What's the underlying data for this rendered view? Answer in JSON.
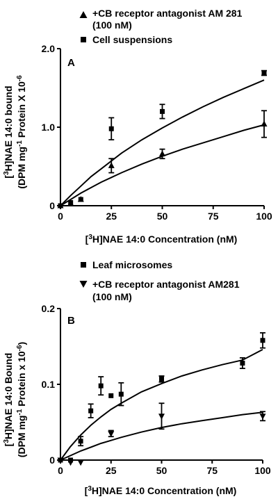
{
  "chart_data": [
    {
      "type": "scatter",
      "panel_label": "A",
      "xlabel": "[3H]NAE 14:0 Concentration (nM)",
      "ylabel_line1": "[3H]NAE 14:0 bound",
      "ylabel_line2": "(DPM mg-1 Protein X 10-6",
      "xlim": [
        0,
        100
      ],
      "ylim": [
        0,
        2.0
      ],
      "xticks": [
        0,
        25,
        50,
        75,
        100
      ],
      "yticks": [
        {
          "value": 0,
          "label": "0"
        },
        {
          "value": 1.0,
          "label": "1.0"
        },
        {
          "value": 2.0,
          "label": "2.0"
        }
      ],
      "legend_position": "top-left",
      "series": [
        {
          "name": "+CB receptor antagonist AM 281",
          "name_line2": "(100 nM)",
          "marker": "triangle-up",
          "x": [
            0,
            5,
            10,
            25,
            50,
            100
          ],
          "y": [
            0.0,
            0.03,
            0.08,
            0.51,
            0.66,
            1.04
          ],
          "err": [
            0,
            0,
            0,
            0.09,
            0.06,
            0.17
          ],
          "fit_x": [
            0,
            5,
            10,
            15,
            20,
            25,
            30,
            40,
            50,
            60,
            70,
            80,
            90,
            100
          ],
          "fit_y": [
            0.0,
            0.08,
            0.16,
            0.23,
            0.3,
            0.36,
            0.42,
            0.53,
            0.63,
            0.72,
            0.8,
            0.88,
            0.96,
            1.03
          ]
        },
        {
          "name": "Cell suspensions",
          "marker": "square",
          "x": [
            0,
            5,
            10,
            25,
            50,
            100
          ],
          "y": [
            0.0,
            0.04,
            0.08,
            0.98,
            1.2,
            1.69
          ],
          "err": [
            0,
            0,
            0,
            0.14,
            0.09,
            0.03
          ],
          "fit_x": [
            0,
            5,
            10,
            15,
            20,
            25,
            30,
            40,
            50,
            60,
            70,
            80,
            90,
            100
          ],
          "fit_y": [
            0.0,
            0.13,
            0.25,
            0.37,
            0.47,
            0.57,
            0.67,
            0.84,
            0.99,
            1.13,
            1.26,
            1.38,
            1.49,
            1.6
          ]
        }
      ]
    },
    {
      "type": "scatter",
      "panel_label": "B",
      "xlabel": "[3H]NAE 14:0 Concentration (nM)",
      "ylabel_line1": "[3H]NAE 14:0 Bound",
      "ylabel_line2": "(DPM mg-1 Protein x 10-6)",
      "xlim": [
        0,
        100
      ],
      "ylim": [
        0,
        0.2
      ],
      "xticks": [
        0,
        25,
        50,
        75,
        100
      ],
      "yticks": [
        {
          "value": 0,
          "label": "0"
        },
        {
          "value": 0.1,
          "label": "0.1"
        },
        {
          "value": 0.2,
          "label": "0.2"
        }
      ],
      "legend_position": "top-left",
      "series": [
        {
          "name": "Leaf microsomes",
          "marker": "square",
          "x": [
            0,
            5,
            10,
            15,
            20,
            25,
            30,
            50,
            90,
            100
          ],
          "y": [
            0.0,
            0.0,
            0.025,
            0.065,
            0.098,
            0.085,
            0.087,
            0.107,
            0.128,
            0.158
          ],
          "err": [
            0,
            0,
            0.006,
            0.009,
            0.012,
            0,
            0.015,
            0.004,
            0.007,
            0.01
          ],
          "fit_x": [
            0,
            5,
            10,
            15,
            20,
            25,
            30,
            40,
            50,
            60,
            70,
            80,
            90,
            100
          ],
          "fit_y": [
            0.0,
            0.018,
            0.033,
            0.046,
            0.057,
            0.067,
            0.075,
            0.09,
            0.101,
            0.111,
            0.119,
            0.126,
            0.132,
            0.146
          ]
        },
        {
          "name": "+CB receptor antagonist AM281",
          "name_line2": "(100 nM)",
          "marker": "triangle-down",
          "x": [
            0,
            5,
            10,
            25,
            50,
            100
          ],
          "y": [
            0.0,
            -0.003,
            -0.003,
            0.035,
            0.058,
            0.058
          ],
          "err": [
            0,
            0,
            0,
            0.004,
            0.017,
            0.006
          ],
          "fit_x": [
            0,
            5,
            10,
            15,
            20,
            25,
            30,
            40,
            50,
            60,
            70,
            80,
            90,
            100
          ],
          "fit_y": [
            0.0,
            0.006,
            0.012,
            0.017,
            0.022,
            0.026,
            0.03,
            0.037,
            0.043,
            0.048,
            0.052,
            0.056,
            0.06,
            0.063
          ]
        }
      ]
    }
  ]
}
